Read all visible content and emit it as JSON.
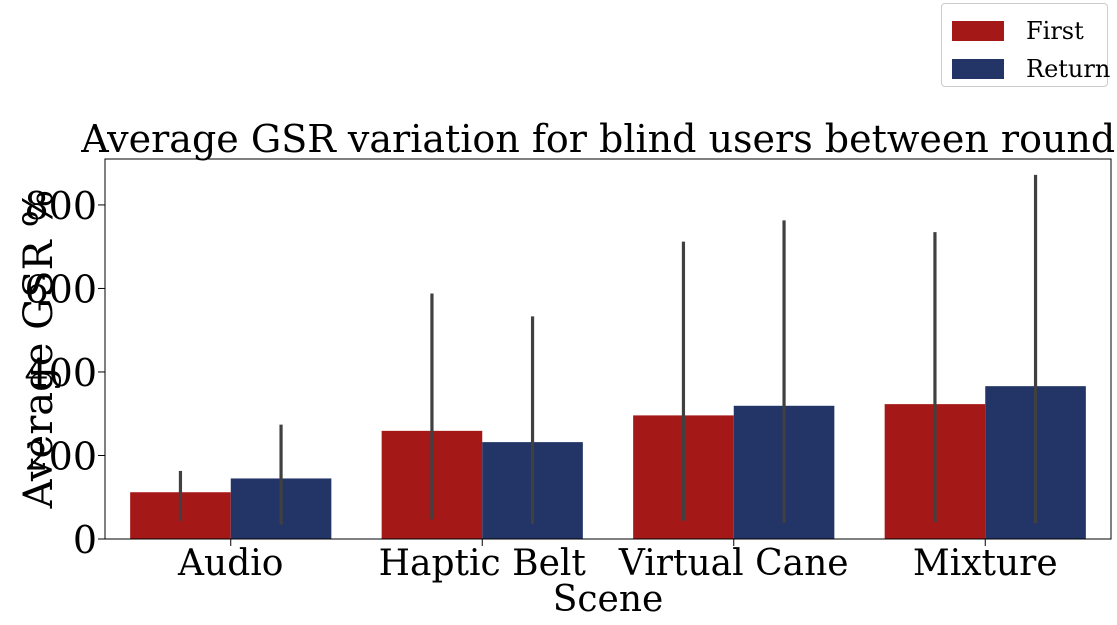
{
  "chart_data": {
    "type": "bar",
    "title": "Average GSR variation for blind users between rounds",
    "xlabel": "Scene",
    "ylabel": "Average GSR %",
    "categories": [
      "Audio",
      "Haptic Belt",
      "Virtual Cane",
      "Mixture"
    ],
    "ylim": [
      0,
      910
    ],
    "yticks": [
      0,
      200,
      400,
      600,
      800
    ],
    "legend_position": "top-right (outside plot)",
    "grid": false,
    "series": [
      {
        "name": "First",
        "color": "#a51818",
        "values": [
          112,
          259,
          296,
          323
        ],
        "error_low": [
          43,
          47,
          44,
          40
        ],
        "error_high": [
          163,
          588,
          712,
          735
        ]
      },
      {
        "name": "Return",
        "color": "#233567",
        "values": [
          145,
          232,
          319,
          366
        ],
        "error_low": [
          34,
          36,
          38,
          38
        ],
        "error_high": [
          274,
          533,
          763,
          872
        ]
      }
    ]
  }
}
